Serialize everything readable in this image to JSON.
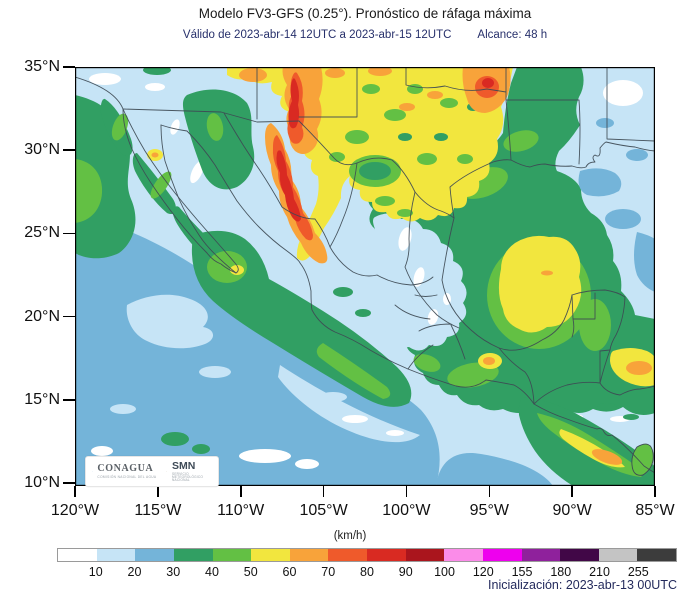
{
  "title": "Modelo FV3-GFS (0.25°). Pronóstico de ráfaga máxima",
  "subtitle": {
    "valid": "Válido de 2023-abr-14 12UTC a 2023-abr-15 12UTC",
    "reach": "Alcance: 48 h"
  },
  "map": {
    "lat_ticks": [
      "35°N",
      "30°N",
      "25°N",
      "20°N",
      "15°N",
      "10°N"
    ],
    "lon_ticks": [
      "120°W",
      "115°W",
      "110°W",
      "105°W",
      "100°W",
      "95°W",
      "90°W",
      "85°W"
    ],
    "logos": {
      "conagua_label": "CONAGUA",
      "conagua_sublabel": "COMISIÓN NACIONAL DEL AGUA",
      "smn_label": "SMN",
      "smn_sublabel": "SERVICIO METEOROLÓGICO NACIONAL"
    }
  },
  "colorbar": {
    "unit_label": "(km/h)",
    "tick_labels": [
      "10",
      "20",
      "30",
      "40",
      "50",
      "60",
      "70",
      "80",
      "90",
      "100",
      "120",
      "155",
      "180",
      "210",
      "255"
    ],
    "cell_colors": [
      "#ffffff",
      "#c6e4f6",
      "#74b4d9",
      "#319f63",
      "#63c044",
      "#f2e63e",
      "#f8a33a",
      "#ef5a2b",
      "#d92a22",
      "#aa151d",
      "#fb8ce9",
      "#ee00ee",
      "#8f219c",
      "#410747",
      "#c4c4c4",
      "#3c3c3c"
    ]
  },
  "footer": {
    "initialization": "Inicialización: 2023-abr-13 00UTC"
  }
}
